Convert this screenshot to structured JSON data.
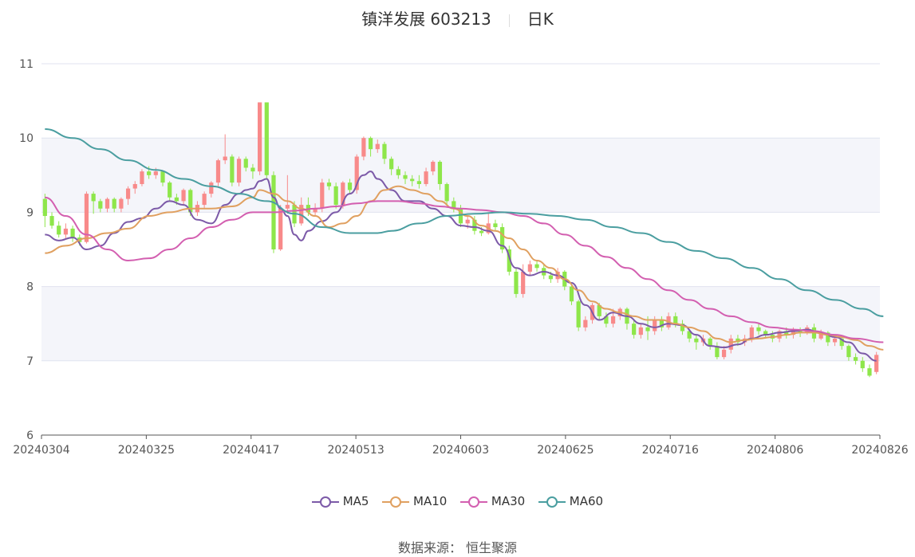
{
  "header": {
    "title": "镇洋发展 603213",
    "period": "日K"
  },
  "source_label": "数据来源：  恒生聚源",
  "chart_data": {
    "type": "candlestick",
    "ylim": [
      6,
      11
    ],
    "yticks": [
      6,
      7,
      8,
      9,
      10,
      11
    ],
    "xticks": [
      "20240304",
      "20240325",
      "20240417",
      "20240513",
      "20240603",
      "20240625",
      "20240716",
      "20240806",
      "20240826"
    ],
    "colors": {
      "up": "#f88a8a",
      "down": "#8ee64a",
      "ma5": "#7c5aa8",
      "ma10": "#e0a060",
      "ma30": "#d35fb0",
      "ma60": "#4a9ea0"
    },
    "candles": [
      [
        9.18,
        8.95,
        9.25,
        8.8
      ],
      [
        8.95,
        8.82,
        9.0,
        8.78
      ],
      [
        8.82,
        8.7,
        8.88,
        8.66
      ],
      [
        8.7,
        8.78,
        8.85,
        8.65
      ],
      [
        8.78,
        8.66,
        8.82,
        8.6
      ],
      [
        8.66,
        8.6,
        8.7,
        8.55
      ],
      [
        8.6,
        9.25,
        9.28,
        8.58
      ],
      [
        9.25,
        9.15,
        9.28,
        8.98
      ],
      [
        9.15,
        9.05,
        9.18,
        9.0
      ],
      [
        9.05,
        9.18,
        9.2,
        9.0
      ],
      [
        9.18,
        9.05,
        9.2,
        9.0
      ],
      [
        9.05,
        9.18,
        9.2,
        9.0
      ],
      [
        9.18,
        9.32,
        9.35,
        9.1
      ],
      [
        9.32,
        9.38,
        9.42,
        9.25
      ],
      [
        9.38,
        9.55,
        9.58,
        9.35
      ],
      [
        9.55,
        9.5,
        9.62,
        9.45
      ],
      [
        9.5,
        9.55,
        9.6,
        9.45
      ],
      [
        9.55,
        9.4,
        9.56,
        9.35
      ],
      [
        9.4,
        9.2,
        9.42,
        9.15
      ],
      [
        9.2,
        9.15,
        9.25,
        9.1
      ],
      [
        9.15,
        9.3,
        9.32,
        9.1
      ],
      [
        9.3,
        9.0,
        9.32,
        8.95
      ],
      [
        9.0,
        9.1,
        9.15,
        8.95
      ],
      [
        9.1,
        9.25,
        9.28,
        9.05
      ],
      [
        9.25,
        9.4,
        9.42,
        9.2
      ],
      [
        9.4,
        9.7,
        9.72,
        9.35
      ],
      [
        9.7,
        9.75,
        10.05,
        9.65
      ],
      [
        9.75,
        9.4,
        9.78,
        9.35
      ],
      [
        9.4,
        9.72,
        9.75,
        9.35
      ],
      [
        9.72,
        9.6,
        9.75,
        9.55
      ],
      [
        9.6,
        9.55,
        9.65,
        9.45
      ],
      [
        9.55,
        10.48,
        10.48,
        9.5
      ],
      [
        10.48,
        9.5,
        10.48,
        9.45
      ],
      [
        9.5,
        8.5,
        9.55,
        8.45
      ],
      [
        8.5,
        9.05,
        9.1,
        8.48
      ],
      [
        9.05,
        9.1,
        9.5,
        8.98
      ],
      [
        9.1,
        8.85,
        9.15,
        8.8
      ],
      [
        8.85,
        9.1,
        9.2,
        8.82
      ],
      [
        9.1,
        9.0,
        9.2,
        8.95
      ],
      [
        9.0,
        9.05,
        9.12,
        8.95
      ],
      [
        9.05,
        9.4,
        9.45,
        9.0
      ],
      [
        9.4,
        9.35,
        9.45,
        9.3
      ],
      [
        9.35,
        9.1,
        9.4,
        9.05
      ],
      [
        9.1,
        9.4,
        9.42,
        9.05
      ],
      [
        9.4,
        9.3,
        9.45,
        9.25
      ],
      [
        9.3,
        9.75,
        9.78,
        9.25
      ],
      [
        9.75,
        10.0,
        10.02,
        9.7
      ],
      [
        10.0,
        9.85,
        10.02,
        9.75
      ],
      [
        9.85,
        9.92,
        9.98,
        9.8
      ],
      [
        9.92,
        9.72,
        9.95,
        9.65
      ],
      [
        9.72,
        9.58,
        9.75,
        9.5
      ],
      [
        9.58,
        9.5,
        9.62,
        9.45
      ],
      [
        9.5,
        9.45,
        9.55,
        9.38
      ],
      [
        9.45,
        9.42,
        9.5,
        9.35
      ],
      [
        9.42,
        9.38,
        9.5,
        9.32
      ],
      [
        9.38,
        9.55,
        9.6,
        9.35
      ],
      [
        9.55,
        9.68,
        9.7,
        9.5
      ],
      [
        9.68,
        9.38,
        9.7,
        9.3
      ],
      [
        9.38,
        9.15,
        9.4,
        9.1
      ],
      [
        9.15,
        9.05,
        9.2,
        9.0
      ],
      [
        9.05,
        8.85,
        9.1,
        8.8
      ],
      [
        8.85,
        8.9,
        8.95,
        8.78
      ],
      [
        8.9,
        8.75,
        8.95,
        8.7
      ],
      [
        8.75,
        8.72,
        8.8,
        8.68
      ],
      [
        8.72,
        8.85,
        9.0,
        8.7
      ],
      [
        8.85,
        8.8,
        8.9,
        8.75
      ],
      [
        8.8,
        8.5,
        8.85,
        8.45
      ],
      [
        8.5,
        8.2,
        8.55,
        8.15
      ],
      [
        8.2,
        7.9,
        8.25,
        7.85
      ],
      [
        7.9,
        8.2,
        8.3,
        7.85
      ],
      [
        8.2,
        8.3,
        8.35,
        8.15
      ],
      [
        8.3,
        8.25,
        8.35,
        8.2
      ],
      [
        8.25,
        8.15,
        8.3,
        8.1
      ],
      [
        8.15,
        8.1,
        8.2,
        8.05
      ],
      [
        8.1,
        8.2,
        8.25,
        8.05
      ],
      [
        8.2,
        8.0,
        8.22,
        7.95
      ],
      [
        8.0,
        7.8,
        8.05,
        7.75
      ],
      [
        7.8,
        7.45,
        7.82,
        7.4
      ],
      [
        7.45,
        7.55,
        7.6,
        7.4
      ],
      [
        7.55,
        7.75,
        7.78,
        7.5
      ],
      [
        7.75,
        7.6,
        7.78,
        7.55
      ],
      [
        7.6,
        7.5,
        7.65,
        7.45
      ],
      [
        7.5,
        7.6,
        7.7,
        7.45
      ],
      [
        7.6,
        7.7,
        7.72,
        7.55
      ],
      [
        7.7,
        7.5,
        7.72,
        7.42
      ],
      [
        7.5,
        7.35,
        7.55,
        7.3
      ],
      [
        7.35,
        7.45,
        7.5,
        7.3
      ],
      [
        7.45,
        7.4,
        7.6,
        7.28
      ],
      [
        7.4,
        7.55,
        7.6,
        7.35
      ],
      [
        7.55,
        7.45,
        7.6,
        7.4
      ],
      [
        7.45,
        7.6,
        7.65,
        7.42
      ],
      [
        7.6,
        7.5,
        7.65,
        7.45
      ],
      [
        7.5,
        7.4,
        7.55,
        7.35
      ],
      [
        7.4,
        7.3,
        7.42,
        7.25
      ],
      [
        7.3,
        7.25,
        7.35,
        7.15
      ],
      [
        7.25,
        7.3,
        7.35,
        7.2
      ],
      [
        7.3,
        7.2,
        7.32,
        7.15
      ],
      [
        7.2,
        7.05,
        7.25,
        7.02
      ],
      [
        7.05,
        7.15,
        7.2,
        7.02
      ],
      [
        7.15,
        7.3,
        7.35,
        7.1
      ],
      [
        7.3,
        7.25,
        7.35,
        7.2
      ],
      [
        7.25,
        7.3,
        7.35,
        7.2
      ],
      [
        7.3,
        7.45,
        7.48,
        7.25
      ],
      [
        7.45,
        7.4,
        7.5,
        7.35
      ],
      [
        7.4,
        7.35,
        7.42,
        7.3
      ],
      [
        7.35,
        7.3,
        7.4,
        7.25
      ],
      [
        7.3,
        7.4,
        7.42,
        7.25
      ],
      [
        7.4,
        7.35,
        7.45,
        7.3
      ],
      [
        7.35,
        7.42,
        7.45,
        7.3
      ],
      [
        7.42,
        7.38,
        7.45,
        7.32
      ],
      [
        7.38,
        7.45,
        7.48,
        7.35
      ],
      [
        7.45,
        7.3,
        7.5,
        7.25
      ],
      [
        7.3,
        7.38,
        7.42,
        7.28
      ],
      [
        7.38,
        7.25,
        7.4,
        7.2
      ],
      [
        7.25,
        7.3,
        7.35,
        7.2
      ],
      [
        7.3,
        7.2,
        7.32,
        7.15
      ],
      [
        7.2,
        7.05,
        7.22,
        7.0
      ],
      [
        7.05,
        7.0,
        7.1,
        6.95
      ],
      [
        7.0,
        6.9,
        7.05,
        6.85
      ],
      [
        6.9,
        6.8,
        6.95,
        6.78
      ],
      [
        6.85,
        7.08,
        7.12,
        6.82
      ]
    ],
    "ma5": [
      [
        0,
        8.7
      ],
      [
        2,
        8.62
      ],
      [
        4,
        8.66
      ],
      [
        6,
        8.5
      ],
      [
        8,
        8.55
      ],
      [
        10,
        8.72
      ],
      [
        12,
        8.87
      ],
      [
        14,
        8.92
      ],
      [
        16,
        9.05
      ],
      [
        18,
        9.15
      ],
      [
        20,
        9.1
      ],
      [
        22,
        8.9
      ],
      [
        24,
        8.85
      ],
      [
        26,
        9.1
      ],
      [
        28,
        9.25
      ],
      [
        29,
        9.3
      ],
      [
        30,
        9.32
      ],
      [
        31,
        9.42
      ],
      [
        32,
        9.45
      ],
      [
        33,
        9.2
      ],
      [
        34,
        9.05
      ],
      [
        35,
        8.95
      ],
      [
        36,
        8.7
      ],
      [
        37,
        8.62
      ],
      [
        38,
        8.75
      ],
      [
        40,
        8.88
      ],
      [
        42,
        9.0
      ],
      [
        44,
        9.25
      ],
      [
        46,
        9.5
      ],
      [
        47,
        9.55
      ],
      [
        48,
        9.45
      ],
      [
        50,
        9.3
      ],
      [
        52,
        9.15
      ],
      [
        54,
        9.15
      ],
      [
        56,
        9.05
      ],
      [
        58,
        8.95
      ],
      [
        60,
        8.82
      ],
      [
        62,
        8.8
      ],
      [
        64,
        8.75
      ],
      [
        66,
        8.55
      ],
      [
        68,
        8.25
      ],
      [
        70,
        8.15
      ],
      [
        72,
        8.2
      ],
      [
        74,
        8.15
      ],
      [
        76,
        8.05
      ],
      [
        78,
        7.75
      ],
      [
        80,
        7.55
      ],
      [
        82,
        7.65
      ],
      [
        84,
        7.6
      ],
      [
        86,
        7.5
      ],
      [
        88,
        7.45
      ],
      [
        90,
        7.5
      ],
      [
        92,
        7.48
      ],
      [
        94,
        7.35
      ],
      [
        96,
        7.2
      ],
      [
        98,
        7.18
      ],
      [
        100,
        7.22
      ],
      [
        102,
        7.3
      ],
      [
        104,
        7.35
      ],
      [
        106,
        7.38
      ],
      [
        108,
        7.4
      ],
      [
        110,
        7.42
      ],
      [
        112,
        7.38
      ],
      [
        114,
        7.32
      ],
      [
        116,
        7.25
      ],
      [
        118,
        7.1
      ],
      [
        120,
        7.0
      ]
    ],
    "ma10": [
      [
        0,
        8.45
      ],
      [
        3,
        8.55
      ],
      [
        6,
        8.65
      ],
      [
        9,
        8.72
      ],
      [
        12,
        8.78
      ],
      [
        15,
        8.95
      ],
      [
        18,
        9.0
      ],
      [
        21,
        9.05
      ],
      [
        24,
        9.05
      ],
      [
        27,
        9.08
      ],
      [
        30,
        9.2
      ],
      [
        31,
        9.3
      ],
      [
        33,
        9.25
      ],
      [
        35,
        9.15
      ],
      [
        37,
        9.05
      ],
      [
        39,
        8.95
      ],
      [
        41,
        8.8
      ],
      [
        43,
        8.85
      ],
      [
        45,
        8.95
      ],
      [
        47,
        9.15
      ],
      [
        49,
        9.3
      ],
      [
        51,
        9.35
      ],
      [
        53,
        9.3
      ],
      [
        55,
        9.25
      ],
      [
        57,
        9.15
      ],
      [
        59,
        9.05
      ],
      [
        61,
        8.95
      ],
      [
        63,
        8.82
      ],
      [
        65,
        8.75
      ],
      [
        67,
        8.65
      ],
      [
        69,
        8.5
      ],
      [
        71,
        8.35
      ],
      [
        73,
        8.25
      ],
      [
        75,
        8.1
      ],
      [
        77,
        7.95
      ],
      [
        79,
        7.8
      ],
      [
        81,
        7.7
      ],
      [
        83,
        7.65
      ],
      [
        85,
        7.6
      ],
      [
        87,
        7.55
      ],
      [
        89,
        7.55
      ],
      [
        91,
        7.5
      ],
      [
        93,
        7.45
      ],
      [
        95,
        7.4
      ],
      [
        97,
        7.3
      ],
      [
        99,
        7.25
      ],
      [
        101,
        7.28
      ],
      [
        103,
        7.3
      ],
      [
        105,
        7.32
      ],
      [
        107,
        7.35
      ],
      [
        109,
        7.38
      ],
      [
        111,
        7.38
      ],
      [
        113,
        7.35
      ],
      [
        115,
        7.32
      ],
      [
        117,
        7.28
      ],
      [
        119,
        7.2
      ],
      [
        121,
        7.15
      ]
    ],
    "ma30": [
      [
        0,
        9.2
      ],
      [
        3,
        8.95
      ],
      [
        6,
        8.7
      ],
      [
        9,
        8.5
      ],
      [
        12,
        8.35
      ],
      [
        15,
        8.38
      ],
      [
        18,
        8.5
      ],
      [
        21,
        8.65
      ],
      [
        24,
        8.8
      ],
      [
        27,
        8.9
      ],
      [
        30,
        9.0
      ],
      [
        33,
        9.0
      ],
      [
        36,
        9.02
      ],
      [
        39,
        9.05
      ],
      [
        42,
        9.08
      ],
      [
        45,
        9.12
      ],
      [
        48,
        9.15
      ],
      [
        51,
        9.15
      ],
      [
        54,
        9.12
      ],
      [
        57,
        9.08
      ],
      [
        60,
        9.05
      ],
      [
        63,
        9.03
      ],
      [
        66,
        9.0
      ],
      [
        69,
        8.95
      ],
      [
        72,
        8.85
      ],
      [
        75,
        8.7
      ],
      [
        78,
        8.55
      ],
      [
        81,
        8.4
      ],
      [
        84,
        8.25
      ],
      [
        87,
        8.1
      ],
      [
        90,
        7.95
      ],
      [
        93,
        7.82
      ],
      [
        96,
        7.7
      ],
      [
        99,
        7.6
      ],
      [
        102,
        7.52
      ],
      [
        105,
        7.45
      ],
      [
        108,
        7.42
      ],
      [
        111,
        7.4
      ],
      [
        114,
        7.35
      ],
      [
        117,
        7.3
      ],
      [
        121,
        7.25
      ]
    ],
    "ma60": [
      [
        0,
        10.12
      ],
      [
        4,
        10.0
      ],
      [
        8,
        9.85
      ],
      [
        12,
        9.7
      ],
      [
        16,
        9.57
      ],
      [
        20,
        9.45
      ],
      [
        24,
        9.35
      ],
      [
        28,
        9.25
      ],
      [
        32,
        9.15
      ],
      [
        36,
        8.98
      ],
      [
        40,
        8.8
      ],
      [
        44,
        8.72
      ],
      [
        48,
        8.72
      ],
      [
        50,
        8.75
      ],
      [
        54,
        8.85
      ],
      [
        58,
        8.95
      ],
      [
        62,
        8.98
      ],
      [
        66,
        9.0
      ],
      [
        70,
        8.98
      ],
      [
        74,
        8.95
      ],
      [
        78,
        8.9
      ],
      [
        82,
        8.8
      ],
      [
        86,
        8.72
      ],
      [
        90,
        8.6
      ],
      [
        94,
        8.48
      ],
      [
        98,
        8.38
      ],
      [
        102,
        8.25
      ],
      [
        106,
        8.1
      ],
      [
        110,
        7.95
      ],
      [
        114,
        7.82
      ],
      [
        118,
        7.7
      ],
      [
        121,
        7.6
      ]
    ],
    "legend": [
      "MA5",
      "MA10",
      "MA30",
      "MA60"
    ]
  }
}
